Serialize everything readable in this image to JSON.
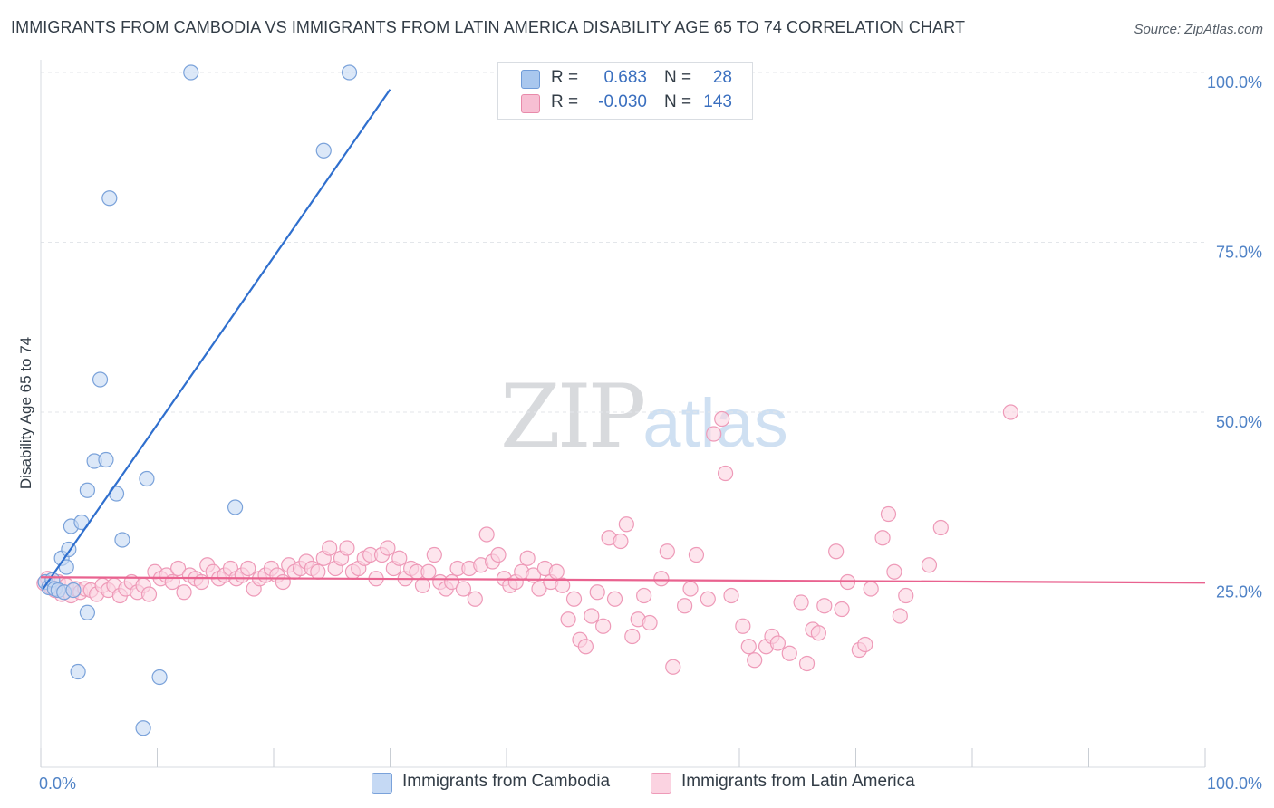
{
  "title": "IMMIGRANTS FROM CAMBODIA VS IMMIGRANTS FROM LATIN AMERICA DISABILITY AGE 65 TO 74 CORRELATION CHART",
  "source": "Source: ZipAtlas.com",
  "watermark": {
    "zip": "ZIP",
    "atlas": "atlas"
  },
  "stats": [
    {
      "r_label": "R =",
      "r_value": "0.683",
      "n_label": "N =",
      "n_value": "28",
      "color": "#a9c7ee",
      "border": "#6f9bd8"
    },
    {
      "r_label": "R =",
      "r_value": "-0.030",
      "n_label": "N =",
      "n_value": "143",
      "color": "#f7bfd3",
      "border": "#e88aaa"
    }
  ],
  "legend": [
    {
      "label": "Immigrants from Cambodia",
      "color": "#c5d9f4",
      "border": "#7aa2da"
    },
    {
      "label": "Immigrants from Latin America",
      "color": "#fbd3e1",
      "border": "#ee9ab8"
    }
  ],
  "chart_data": {
    "type": "scatter",
    "title": "IMMIGRANTS FROM CAMBODIA VS IMMIGRANTS FROM LATIN AMERICA DISABILITY AGE 65 TO 74 CORRELATION CHART",
    "xlabel": "",
    "ylabel": "Disability Age 65 to 74",
    "xlim": [
      0,
      100
    ],
    "ylim": [
      0,
      100
    ],
    "x_ticks": [
      "0.0%",
      "100.0%"
    ],
    "y_ticks": [
      {
        "value": 25,
        "label": "25.0%"
      },
      {
        "value": 50,
        "label": "50.0%"
      },
      {
        "value": 75,
        "label": "75.0%"
      },
      {
        "value": 100,
        "label": "100.0%"
      }
    ],
    "grid": true,
    "legend_position": "bottom",
    "series": [
      {
        "name": "Immigrants from Cambodia",
        "color": "#7aa2da",
        "fill": "#c5d9f4",
        "trend_color": "#2f6fce",
        "trend": {
          "x0": 0.2,
          "y0": 24.0,
          "x1": 30.0,
          "y1": 97.5
        },
        "points": [
          [
            0.4,
            25.0
          ],
          [
            0.7,
            24.2
          ],
          [
            1.0,
            25.3
          ],
          [
            1.2,
            24.0
          ],
          [
            1.5,
            23.8
          ],
          [
            1.8,
            28.5
          ],
          [
            2.0,
            23.5
          ],
          [
            2.2,
            27.2
          ],
          [
            2.4,
            29.8
          ],
          [
            2.6,
            33.2
          ],
          [
            2.8,
            23.8
          ],
          [
            3.2,
            11.8
          ],
          [
            3.5,
            33.8
          ],
          [
            4.0,
            38.5
          ],
          [
            4.0,
            20.5
          ],
          [
            4.6,
            42.8
          ],
          [
            5.1,
            54.8
          ],
          [
            5.6,
            43.0
          ],
          [
            5.9,
            81.5
          ],
          [
            6.5,
            38.0
          ],
          [
            7.0,
            31.2
          ],
          [
            9.1,
            40.2
          ],
          [
            10.2,
            11.0
          ],
          [
            12.9,
            100.0
          ],
          [
            16.7,
            36.0
          ],
          [
            8.8,
            3.5
          ],
          [
            24.3,
            88.5
          ],
          [
            26.5,
            100.0
          ]
        ]
      },
      {
        "name": "Immigrants from Latin America",
        "color": "#ee9ab8",
        "fill": "#fbd3e1",
        "trend_color": "#e9628f",
        "trend": {
          "x0": 0.0,
          "y0": 25.7,
          "x1": 100.0,
          "y1": 24.9
        },
        "points": [
          [
            0.3,
            24.8
          ],
          [
            0.6,
            25.5
          ],
          [
            0.9,
            24.2
          ],
          [
            1.2,
            23.8
          ],
          [
            1.5,
            25.0
          ],
          [
            1.8,
            23.2
          ],
          [
            2.2,
            24.5
          ],
          [
            2.6,
            23.0
          ],
          [
            3.0,
            24.0
          ],
          [
            3.4,
            23.5
          ],
          [
            3.8,
            24.0
          ],
          [
            4.3,
            23.8
          ],
          [
            4.8,
            23.2
          ],
          [
            5.3,
            24.5
          ],
          [
            5.8,
            23.8
          ],
          [
            6.3,
            24.5
          ],
          [
            6.8,
            23.0
          ],
          [
            7.3,
            24.0
          ],
          [
            7.8,
            25.0
          ],
          [
            8.3,
            23.5
          ],
          [
            8.8,
            24.5
          ],
          [
            9.3,
            23.2
          ],
          [
            9.8,
            26.5
          ],
          [
            10.3,
            25.5
          ],
          [
            10.8,
            26.0
          ],
          [
            11.3,
            25.0
          ],
          [
            11.8,
            27.0
          ],
          [
            12.3,
            23.5
          ],
          [
            12.8,
            26.0
          ],
          [
            13.3,
            25.5
          ],
          [
            13.8,
            25.0
          ],
          [
            14.3,
            27.5
          ],
          [
            14.8,
            26.5
          ],
          [
            15.3,
            25.5
          ],
          [
            15.8,
            26.0
          ],
          [
            16.3,
            27.0
          ],
          [
            16.8,
            25.5
          ],
          [
            17.3,
            26.0
          ],
          [
            17.8,
            27.0
          ],
          [
            18.3,
            24.0
          ],
          [
            18.8,
            25.5
          ],
          [
            19.3,
            26.0
          ],
          [
            19.8,
            27.0
          ],
          [
            20.3,
            26.0
          ],
          [
            20.8,
            25.0
          ],
          [
            21.3,
            27.5
          ],
          [
            21.8,
            26.5
          ],
          [
            22.3,
            27.0
          ],
          [
            22.8,
            28.0
          ],
          [
            23.3,
            27.0
          ],
          [
            23.8,
            26.5
          ],
          [
            24.3,
            28.5
          ],
          [
            24.8,
            30.0
          ],
          [
            25.3,
            27.0
          ],
          [
            25.8,
            28.5
          ],
          [
            26.3,
            30.0
          ],
          [
            26.8,
            26.5
          ],
          [
            27.3,
            27.0
          ],
          [
            27.8,
            28.5
          ],
          [
            28.3,
            29.0
          ],
          [
            28.8,
            25.5
          ],
          [
            29.3,
            29.0
          ],
          [
            29.8,
            30.0
          ],
          [
            30.3,
            27.0
          ],
          [
            30.8,
            28.5
          ],
          [
            31.3,
            25.5
          ],
          [
            31.8,
            27.0
          ],
          [
            32.3,
            26.5
          ],
          [
            32.8,
            24.5
          ],
          [
            33.3,
            26.5
          ],
          [
            33.8,
            29.0
          ],
          [
            34.3,
            25.0
          ],
          [
            34.8,
            24.0
          ],
          [
            35.3,
            25.0
          ],
          [
            35.8,
            27.0
          ],
          [
            36.3,
            24.0
          ],
          [
            36.8,
            27.0
          ],
          [
            37.3,
            22.5
          ],
          [
            37.8,
            27.5
          ],
          [
            38.3,
            32.0
          ],
          [
            38.8,
            28.0
          ],
          [
            39.3,
            29.0
          ],
          [
            39.8,
            25.5
          ],
          [
            40.3,
            24.5
          ],
          [
            40.8,
            25.0
          ],
          [
            41.3,
            26.5
          ],
          [
            41.8,
            28.5
          ],
          [
            42.3,
            26.0
          ],
          [
            42.8,
            24.0
          ],
          [
            43.3,
            27.0
          ],
          [
            43.8,
            25.0
          ],
          [
            44.3,
            26.5
          ],
          [
            44.8,
            24.5
          ],
          [
            45.3,
            19.5
          ],
          [
            45.8,
            22.5
          ],
          [
            46.3,
            16.5
          ],
          [
            46.8,
            15.5
          ],
          [
            47.3,
            20.0
          ],
          [
            47.8,
            23.5
          ],
          [
            48.3,
            18.5
          ],
          [
            48.8,
            31.5
          ],
          [
            49.3,
            22.5
          ],
          [
            49.8,
            31.0
          ],
          [
            50.3,
            33.5
          ],
          [
            50.8,
            17.0
          ],
          [
            51.3,
            19.5
          ],
          [
            51.8,
            23.0
          ],
          [
            52.3,
            19.0
          ],
          [
            53.3,
            25.5
          ],
          [
            53.8,
            29.5
          ],
          [
            54.3,
            12.5
          ],
          [
            55.3,
            21.5
          ],
          [
            55.8,
            24.0
          ],
          [
            56.3,
            29.0
          ],
          [
            57.3,
            22.5
          ],
          [
            57.8,
            46.8
          ],
          [
            58.5,
            49.0
          ],
          [
            58.8,
            41.0
          ],
          [
            59.3,
            23.0
          ],
          [
            60.3,
            18.5
          ],
          [
            60.8,
            15.5
          ],
          [
            61.3,
            13.5
          ],
          [
            62.3,
            15.5
          ],
          [
            62.8,
            17.0
          ],
          [
            63.3,
            16.0
          ],
          [
            64.3,
            14.5
          ],
          [
            65.3,
            22.0
          ],
          [
            65.8,
            13.0
          ],
          [
            66.3,
            18.0
          ],
          [
            66.8,
            17.5
          ],
          [
            67.3,
            21.5
          ],
          [
            68.3,
            29.5
          ],
          [
            68.8,
            21.0
          ],
          [
            69.3,
            25.0
          ],
          [
            70.3,
            15.0
          ],
          [
            70.8,
            15.8
          ],
          [
            71.3,
            24.0
          ],
          [
            72.3,
            31.5
          ],
          [
            72.8,
            35.0
          ],
          [
            73.3,
            26.5
          ],
          [
            73.8,
            20.0
          ],
          [
            74.3,
            23.0
          ],
          [
            76.3,
            27.5
          ],
          [
            77.3,
            33.0
          ],
          [
            83.3,
            50.0
          ]
        ]
      }
    ]
  }
}
